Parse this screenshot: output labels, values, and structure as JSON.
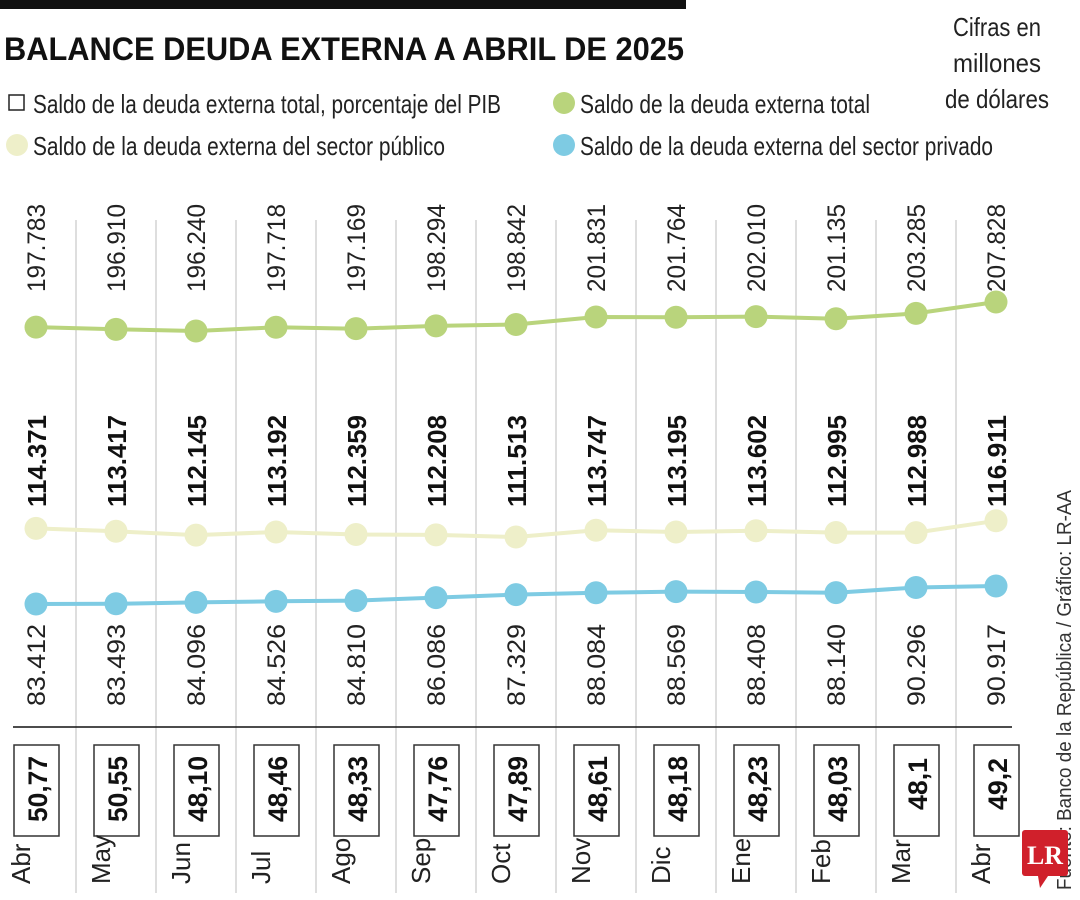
{
  "title": "BALANCE DEUDA EXTERNA A ABRIL DE 2025",
  "units_note": [
    "Cifras en",
    "millones",
    "de dólares"
  ],
  "source": "Fuente: Banco de la República / Gráfico: LR-AA",
  "logo": "LR",
  "colors": {
    "total": "#b9d47c",
    "public": "#eeefc9",
    "private": "#7ecbe3",
    "logo": "#d0202b"
  },
  "chart_data": {
    "type": "line",
    "categories": [
      "Abr",
      "May",
      "Jun",
      "Jul",
      "Ago",
      "Sep",
      "Oct",
      "Nov",
      "Dic",
      "Ene",
      "Feb",
      "Mar",
      "Abr"
    ],
    "series": [
      {
        "name": "Saldo de la deuda externa total",
        "labels": [
          "197.783",
          "196.910",
          "196.240",
          "197.718",
          "197.169",
          "198.294",
          "198.842",
          "201.831",
          "201.764",
          "202.010",
          "201.135",
          "203.285",
          "207.828"
        ],
        "values": [
          197783,
          196910,
          196240,
          197718,
          197169,
          198294,
          198842,
          201831,
          201764,
          202010,
          201135,
          203285,
          207828
        ]
      },
      {
        "name": "Saldo de la deuda externa del sector público",
        "labels": [
          "114.371",
          "113.417",
          "112.145",
          "113.192",
          "112.359",
          "112.208",
          "111.513",
          "113.747",
          "113.195",
          "113.602",
          "112.995",
          "112.988",
          "116.911"
        ],
        "values": [
          114371,
          113417,
          112145,
          113192,
          112359,
          112208,
          111513,
          113747,
          113195,
          113602,
          112995,
          112988,
          116911
        ]
      },
      {
        "name": "Saldo de la deuda externa del sector privado",
        "labels": [
          "83.412",
          "83.493",
          "84.096",
          "84.526",
          "84.810",
          "86.086",
          "87.329",
          "88.084",
          "88.569",
          "88.408",
          "88.140",
          "90.296",
          "90.917"
        ],
        "values": [
          83412,
          83493,
          84096,
          84526,
          84810,
          86086,
          87329,
          88084,
          88569,
          88408,
          88140,
          90296,
          90917
        ]
      }
    ],
    "pib_series": {
      "name": "Saldo de la deuda externa total, porcentaje del PIB",
      "labels": [
        "50,77",
        "50,55",
        "48,10",
        "48,46",
        "48,33",
        "47,76",
        "47,89",
        "48,61",
        "48,18",
        "48,23",
        "48,03",
        "48,1",
        "49,2"
      ],
      "values": [
        50.77,
        50.55,
        48.1,
        48.46,
        48.33,
        47.76,
        47.89,
        48.61,
        48.18,
        48.23,
        48.03,
        48.1,
        49.2
      ]
    },
    "legend": [
      "Saldo de la deuda externa total, porcentaje del PIB",
      "Saldo de la deuda externa total",
      "Saldo de la deuda externa del sector público",
      "Saldo de la deuda externa del sector privado"
    ]
  }
}
